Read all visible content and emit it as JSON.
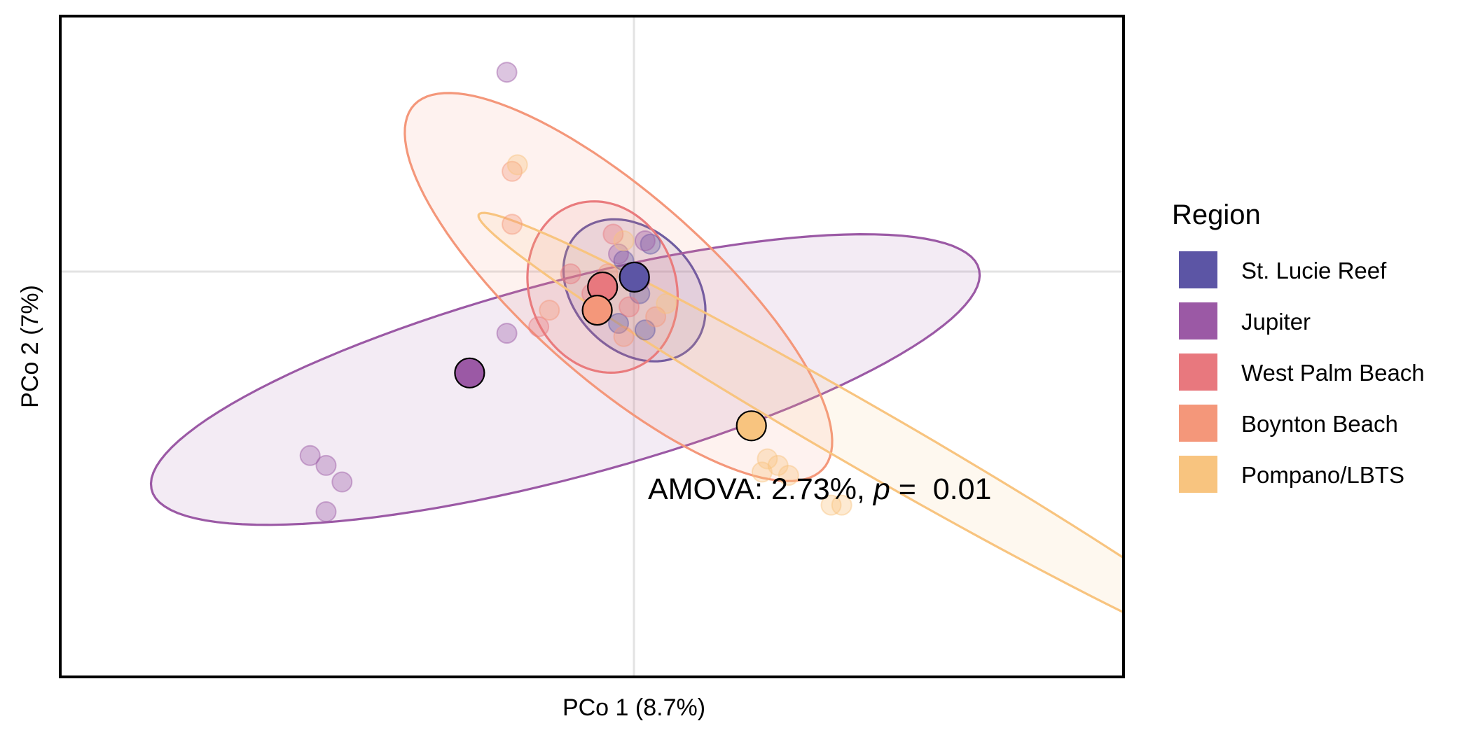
{
  "chart_data": {
    "type": "scatter",
    "title": "",
    "xlabel": "PCo 1 (8.7%)",
    "ylabel": "PCo 2 (7%)",
    "xlim": [
      -1.0,
      1.0
    ],
    "ylim": [
      -1.0,
      1.0
    ],
    "grid": "zero lines only",
    "legend_position": "right",
    "annotation": {
      "prefix": "AMOVA: 2.73%, ",
      "italic": "p",
      "suffix": " =  0.01"
    },
    "legend_title": "Region",
    "series": [
      {
        "name": "St. Lucie Reef",
        "color": "#5c55a5",
        "centroid": [
          0.08,
          0.21
        ],
        "ellipse": {
          "cx": 0.08,
          "cy": 0.17,
          "rx": 0.125,
          "ry": 0.22,
          "angle": 15
        },
        "points": [
          [
            0.06,
            0.26
          ],
          [
            0.09,
            0.16
          ],
          [
            0.11,
            0.31
          ],
          [
            0.05,
            0.07
          ],
          [
            0.1,
            0.05
          ]
        ]
      },
      {
        "name": "Jupiter",
        "color": "#9b59a5",
        "centroid": [
          -0.23,
          -0.08
        ],
        "ellipse": {
          "cx": -0.05,
          "cy": -0.1,
          "rx": 0.85,
          "ry": 0.28,
          "angle": 25
        },
        "points": [
          [
            -0.16,
            0.04
          ],
          [
            -0.16,
            0.83
          ],
          [
            -0.5,
            -0.36
          ],
          [
            -0.53,
            -0.33
          ],
          [
            -0.5,
            -0.5
          ],
          [
            -0.47,
            -0.41
          ],
          [
            0.05,
            0.28
          ],
          [
            0.09,
            0.2
          ],
          [
            0.1,
            0.32
          ]
        ]
      },
      {
        "name": "West Palm Beach",
        "color": "#e8787e",
        "centroid": [
          0.02,
          0.18
        ],
        "ellipse": {
          "cx": 0.02,
          "cy": 0.18,
          "rx": 0.14,
          "ry": 0.26,
          "angle": 5
        },
        "points": [
          [
            -0.1,
            0.06
          ],
          [
            0.04,
            0.34
          ],
          [
            0.0,
            0.16
          ],
          [
            -0.04,
            0.22
          ],
          [
            0.07,
            0.12
          ]
        ]
      },
      {
        "name": "Boynton Beach",
        "color": "#f4977a",
        "centroid": [
          0.01,
          0.11
        ],
        "ellipse": {
          "cx": 0.05,
          "cy": 0.18,
          "rx": 0.21,
          "ry": 0.68,
          "angle": 32
        },
        "points": [
          [
            -0.15,
            0.37
          ],
          [
            -0.15,
            0.53
          ],
          [
            -0.08,
            0.11
          ],
          [
            0.03,
            0.22
          ],
          [
            0.12,
            0.09
          ],
          [
            0.06,
            0.03
          ]
        ]
      },
      {
        "name": "Pompano/LBTS",
        "color": "#f8c47f",
        "centroid": [
          0.3,
          -0.24
        ],
        "ellipse": {
          "cx": 0.52,
          "cy": -0.28,
          "rx": 0.08,
          "ry": 1.0,
          "angle": 47
        },
        "points": [
          [
            -0.14,
            0.55
          ],
          [
            0.06,
            0.32
          ],
          [
            0.14,
            0.13
          ],
          [
            0.33,
            -0.34
          ],
          [
            0.35,
            -0.36
          ],
          [
            0.37,
            -0.39
          ],
          [
            0.45,
            -0.48
          ],
          [
            0.47,
            -0.48
          ],
          [
            0.32,
            -0.38
          ]
        ]
      }
    ]
  }
}
